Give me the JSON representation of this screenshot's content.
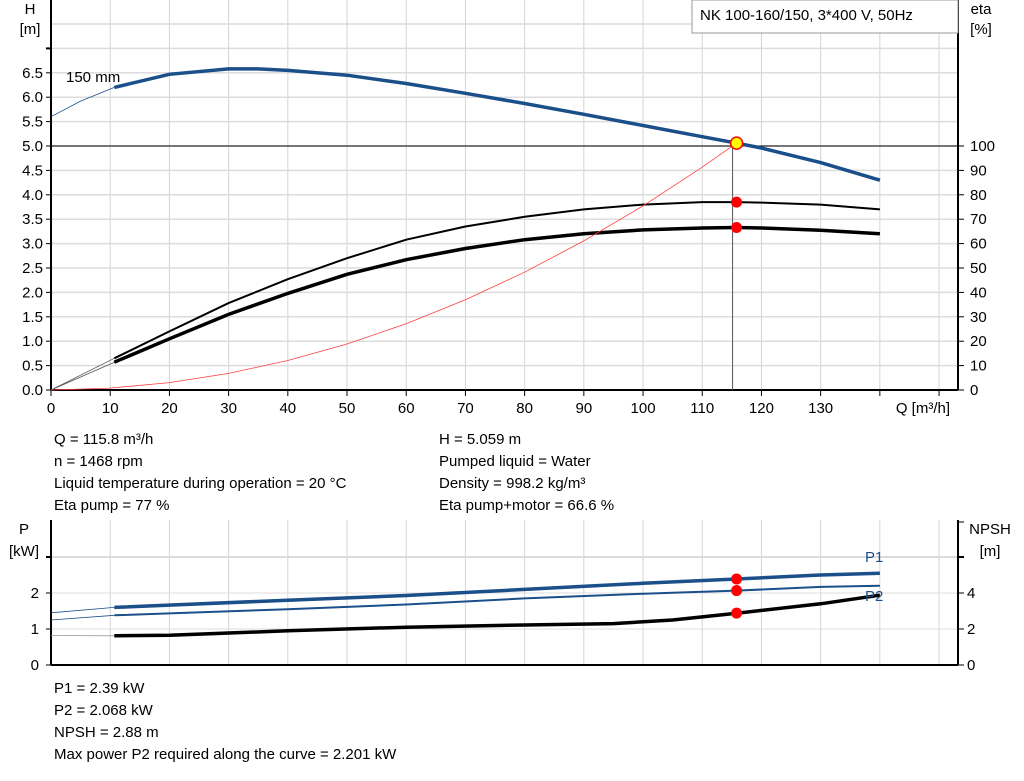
{
  "chart_data": [
    {
      "type": "line",
      "title": "NK 100-160/150, 3*400 V, 50Hz",
      "xlabel": "Q [m³/h]",
      "ylabel": "H\n[m]",
      "ylabel_lines": [
        "H",
        "[m]"
      ],
      "y2label_lines": [
        "eta",
        "[%]"
      ],
      "xlim": [
        0,
        150
      ],
      "ylim": [
        0,
        7.5
      ],
      "y2lim": [
        0,
        150
      ],
      "xticks": [
        "0",
        "10",
        "20",
        "30",
        "40",
        "50",
        "60",
        "70",
        "80",
        "90",
        "100",
        "110",
        "120",
        "130"
      ],
      "yticks": [
        "0.0",
        "0.5",
        "1.0",
        "1.5",
        "2.0",
        "2.5",
        "3.0",
        "3.5",
        "4.0",
        "4.5",
        "5.0",
        "5.5",
        "6.0",
        "6.5"
      ],
      "y2ticks": [
        "0",
        "10",
        "20",
        "30",
        "40",
        "50",
        "60",
        "70",
        "80",
        "90",
        "100"
      ],
      "grid": true,
      "curve_label": "150 mm",
      "series": [
        {
          "key": "H",
          "axis": "left",
          "color": "#1a4f8a",
          "points": [
            [
              0,
              5.6
            ],
            [
              5,
              5.92
            ],
            [
              10.7,
              6.2
            ],
            [
              20,
              6.47
            ],
            [
              30,
              6.58
            ],
            [
              35,
              6.58
            ],
            [
              40,
              6.55
            ],
            [
              50,
              6.45
            ],
            [
              60,
              6.28
            ],
            [
              70,
              6.08
            ],
            [
              80,
              5.87
            ],
            [
              90,
              5.65
            ],
            [
              100,
              5.42
            ],
            [
              110,
              5.19
            ],
            [
              115.8,
              5.06
            ],
            [
              120,
              4.96
            ],
            [
              130,
              4.66
            ],
            [
              140,
              4.3
            ]
          ]
        },
        {
          "key": "eta_pump",
          "axis": "right",
          "color": "#000000",
          "points": [
            [
              0,
              0
            ],
            [
              10.7,
              13
            ],
            [
              20,
              24
            ],
            [
              30,
              35.6
            ],
            [
              40,
              45.4
            ],
            [
              50,
              54
            ],
            [
              60,
              61.6
            ],
            [
              70,
              67
            ],
            [
              80,
              71
            ],
            [
              90,
              74
            ],
            [
              100,
              76
            ],
            [
              110,
              77
            ],
            [
              115.8,
              77
            ],
            [
              120,
              76.8
            ],
            [
              130,
              76
            ],
            [
              140,
              74
            ]
          ]
        },
        {
          "key": "eta_pump_motor",
          "axis": "right",
          "color": "#000000",
          "points": [
            [
              0,
              0
            ],
            [
              10.7,
              11.4
            ],
            [
              20,
              21
            ],
            [
              30,
              31
            ],
            [
              40,
              39.6
            ],
            [
              50,
              47.4
            ],
            [
              60,
              53.4
            ],
            [
              70,
              58
            ],
            [
              80,
              61.6
            ],
            [
              90,
              64
            ],
            [
              100,
              65.6
            ],
            [
              110,
              66.4
            ],
            [
              115.8,
              66.6
            ],
            [
              120,
              66.4
            ],
            [
              130,
              65.5
            ],
            [
              140,
              64
            ]
          ]
        },
        {
          "key": "system_curve",
          "axis": "left",
          "color": "#ff4040",
          "points": [
            [
              0,
              0
            ],
            [
              10,
              0.038
            ],
            [
              20,
              0.151
            ],
            [
              30,
              0.34
            ],
            [
              40,
              0.604
            ],
            [
              50,
              0.943
            ],
            [
              60,
              1.358
            ],
            [
              70,
              1.849
            ],
            [
              80,
              2.414
            ],
            [
              90,
              3.056
            ],
            [
              100,
              3.773
            ],
            [
              110,
              4.565
            ],
            [
              115.8,
              5.059
            ]
          ]
        }
      ],
      "duty_point": {
        "Q": 115.8,
        "H": 5.059,
        "eta_pump": 77,
        "eta_pump_motor": 66.6,
        "color": "#ffff00"
      }
    },
    {
      "type": "line",
      "ylabel_lines": [
        "P",
        "[kW]"
      ],
      "y2label_lines": [
        "NPSH",
        "[m]"
      ],
      "xlim": [
        0,
        150
      ],
      "ylim": [
        0,
        4
      ],
      "y2lim": [
        0,
        8
      ],
      "yticks": [
        "0",
        "1",
        "2"
      ],
      "y2ticks": [
        "0",
        "2",
        "4"
      ],
      "grid": true,
      "series": [
        {
          "name": "P1",
          "axis": "left",
          "color": "#1a4f8a",
          "points": [
            [
              0,
              1.45
            ],
            [
              10.7,
              1.6
            ],
            [
              40,
              1.8
            ],
            [
              60,
              1.93
            ],
            [
              80,
              2.1
            ],
            [
              100,
              2.27
            ],
            [
              115.8,
              2.39
            ],
            [
              130,
              2.5
            ],
            [
              140,
              2.55
            ]
          ]
        },
        {
          "name": "P2",
          "axis": "left",
          "color": "#1a4f8a",
          "points": [
            [
              0,
              1.25
            ],
            [
              10.7,
              1.38
            ],
            [
              40,
              1.55
            ],
            [
              60,
              1.68
            ],
            [
              80,
              1.85
            ],
            [
              100,
              1.98
            ],
            [
              115.8,
              2.068
            ],
            [
              130,
              2.17
            ],
            [
              140,
              2.2
            ]
          ]
        },
        {
          "key": "NPSH",
          "axis": "right",
          "color": "#000000",
          "points": [
            [
              0,
              1.64
            ],
            [
              10.7,
              1.62
            ],
            [
              20,
              1.65
            ],
            [
              40,
              1.9
            ],
            [
              60,
              2.1
            ],
            [
              80,
              2.22
            ],
            [
              95,
              2.3
            ],
            [
              105,
              2.5
            ],
            [
              115.8,
              2.88
            ],
            [
              130,
              3.4
            ],
            [
              140,
              3.88
            ]
          ]
        }
      ],
      "duty_point": {
        "Q": 115.8,
        "P1": 2.39,
        "P2": 2.068,
        "NPSH": 2.88
      }
    }
  ],
  "info_top_left": [
    "Q = 115.8 m³/h",
    "n = 1468 rpm",
    "Liquid temperature during operation = 20 °C",
    "Eta pump = 77 %"
  ],
  "info_top_right": [
    "H = 5.059 m",
    "Pumped liquid = Water",
    "Density = 998.2 kg/m³",
    "Eta pump+motor = 66.6 %"
  ],
  "info_bottom": [
    "P1 = 2.39 kW",
    "P2 = 2.068 kW",
    "NPSH = 2.88 m",
    "Max power P2 required along the curve = 2.201 kW"
  ]
}
